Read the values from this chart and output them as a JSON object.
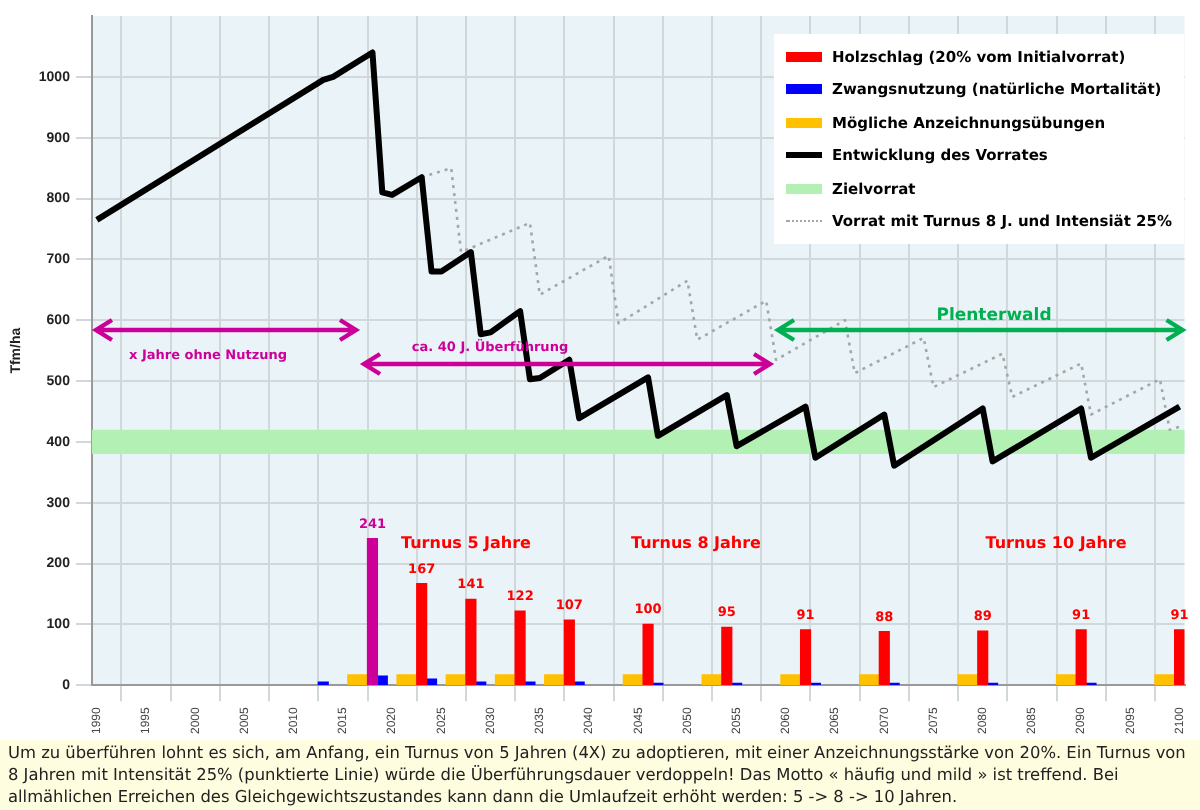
{
  "chart_data": {
    "type": "bar",
    "ylabel": "Tfm/ha",
    "xlim": [
      1989.5,
      2100.5
    ],
    "xticks": [
      1990,
      1995,
      2000,
      2005,
      2010,
      2015,
      2020,
      2025,
      2030,
      2035,
      2040,
      2045,
      2050,
      2055,
      2060,
      2065,
      2070,
      2075,
      2080,
      2085,
      2090,
      2095,
      2100
    ],
    "ylim": [
      0,
      1100
    ],
    "yticks": [
      0,
      100,
      200,
      300,
      400,
      500,
      600,
      700,
      800,
      900,
      1000
    ],
    "grid": true,
    "legend": "top right",
    "marker": "none",
    "series": [
      {
        "name": "Holzschlag (20% vom Initialvorrat)",
        "color": "#ff0000",
        "colors": [
          "#cc0099",
          "#ff0000",
          "#ff0000",
          "#ff0000",
          "#ff0000",
          "#ff0000",
          "#ff0000",
          "#ff0000",
          "#ff0000",
          "#ff0000",
          "#ff0000",
          "#ff0000"
        ],
        "x": [
          2018,
          2023,
          2028,
          2033,
          2038,
          2046,
          2054,
          2062,
          2070,
          2080,
          2090,
          2100
        ],
        "values": [
          241,
          167,
          141,
          122,
          107,
          100,
          95,
          91,
          88,
          89,
          91,
          91
        ],
        "value_labels": [
          "241",
          "167",
          "141",
          "122",
          "107",
          "100",
          "95",
          "91",
          "88",
          "89",
          "91",
          "91"
        ]
      },
      {
        "name": "Zwangsnutzung (natürliche Mortalität)",
        "color": "#0000ff",
        "x": [
          2013,
          2019,
          2024,
          2029,
          2034,
          2039,
          2047,
          2055,
          2063,
          2071,
          2081,
          2091
        ],
        "values": [
          5,
          15,
          10,
          5,
          5,
          5,
          3,
          3,
          3,
          3,
          3,
          3
        ]
      },
      {
        "name": "Mögliche Anzeichnungsübungen",
        "color": "#ffc000",
        "x": [
          2016,
          2017,
          2021,
          2022,
          2026,
          2027,
          2031,
          2032,
          2036,
          2037,
          2044,
          2045,
          2052,
          2053,
          2060,
          2061,
          2068,
          2069,
          2078,
          2079,
          2088,
          2089,
          2098,
          2099
        ],
        "values": [
          17,
          17,
          17,
          17,
          17,
          17,
          17,
          17,
          17,
          17,
          17,
          17,
          17,
          17,
          17,
          17,
          17,
          17,
          17,
          17,
          17,
          17,
          17,
          17
        ]
      },
      {
        "name": "Entwicklung des Vorrates",
        "type": "line",
        "color": "#000000",
        "line_style": "solid",
        "x": [
          1990,
          2013,
          2014,
          2018,
          2019,
          2020,
          2023,
          2024,
          2025,
          2028,
          2029,
          2030,
          2033,
          2034,
          2035,
          2038,
          2039,
          2046,
          2047,
          2054,
          2055,
          2062,
          2063,
          2070,
          2071,
          2080,
          2081,
          2090,
          2091,
          2100
        ],
        "values": [
          765,
          995,
          1000,
          1040,
          810,
          806,
          835,
          680,
          680,
          712,
          577,
          580,
          615,
          503,
          505,
          535,
          439,
          506,
          410,
          477,
          393,
          458,
          374,
          445,
          361,
          455,
          368,
          455,
          374,
          458
        ]
      },
      {
        "name": "Vorrat mit Turnus 8 J. und Intensiät 25%",
        "type": "line",
        "color": "#a6a6a6",
        "line_style": "dotted",
        "x": [
          2023,
          2026,
          2027,
          2034,
          2035,
          2042,
          2043,
          2050,
          2051,
          2058,
          2059,
          2066,
          2067,
          2074,
          2075,
          2082,
          2083,
          2090,
          2091,
          2098,
          2099,
          2100
        ],
        "values": [
          835,
          850,
          712,
          760,
          642,
          706,
          595,
          665,
          568,
          632,
          535,
          600,
          513,
          571,
          490,
          545,
          474,
          529,
          445,
          503,
          420,
          425
        ]
      }
    ],
    "bands": [
      {
        "axis": "y",
        "from": 380,
        "to": 420,
        "label": "Zielvorrat",
        "color": "#b3f0b3"
      }
    ],
    "annotations": [
      "x Jahre ohne Nutzung",
      "ca. 40 J. Überführung",
      "Plenterwald",
      "Turnus 5 Jahre",
      "Turnus 8 Jahre",
      "Turnus 10 Jahre",
      "Um zu überführen lohnt es sich, am Anfang, ein Turnus von 5 Jahren (4X) zu adoptieren, mit einer Anzeichnungsstärke von 20%. Ein Turnus von 8 Jahren mit Intensität 25% (punktierte Linie) würde die Überführungsdauer verdoppeln!  Das Motto « häufig und mild » ist treffend. Bei allmählichen Erreichen des Gleichgewichtszustandes kann dann die Umlaufzeit erhöht werden: 5 -> 8 -> 10 Jahren."
    ]
  }
}
